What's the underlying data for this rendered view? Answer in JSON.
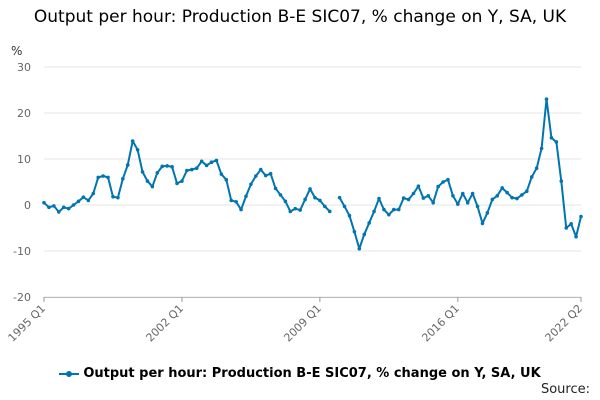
{
  "chart_data": {
    "type": "line",
    "title": "Output per hour: Production B-E SIC07, % change on Y, SA, UK",
    "ylabel": "%",
    "xlabel": "",
    "ylim": [
      -20,
      30
    ],
    "yticks": [
      -20,
      -10,
      0,
      10,
      20,
      30
    ],
    "xticks": [
      "1995 Q1",
      "2002 Q1",
      "2009 Q1",
      "2016 Q1",
      "2022 Q2"
    ],
    "grid": true,
    "legend_position": "bottom",
    "series": [
      {
        "name": "Output per hour: Production B-E SIC07, % change on Y, SA, UK",
        "color": "#0075b0",
        "x": [
          "1995 Q1",
          "1995 Q2",
          "1995 Q3",
          "1995 Q4",
          "1996 Q1",
          "1996 Q2",
          "1996 Q3",
          "1996 Q4",
          "1997 Q1",
          "1997 Q2",
          "1997 Q3",
          "1997 Q4",
          "1998 Q1",
          "1998 Q2",
          "1998 Q3",
          "1998 Q4",
          "1999 Q1",
          "1999 Q2",
          "1999 Q3",
          "1999 Q4",
          "2000 Q1",
          "2000 Q2",
          "2000 Q3",
          "2000 Q4",
          "2001 Q1",
          "2001 Q2",
          "2001 Q3",
          "2001 Q4",
          "2002 Q1",
          "2002 Q2",
          "2002 Q3",
          "2002 Q4",
          "2003 Q1",
          "2003 Q2",
          "2003 Q3",
          "2003 Q4",
          "2004 Q1",
          "2004 Q2",
          "2004 Q3",
          "2004 Q4",
          "2005 Q1",
          "2005 Q2",
          "2005 Q3",
          "2005 Q4",
          "2006 Q1",
          "2006 Q2",
          "2006 Q3",
          "2006 Q4",
          "2007 Q1",
          "2007 Q2",
          "2007 Q3",
          "2007 Q4",
          "2008 Q1",
          "2008 Q2",
          "2008 Q3",
          "2008 Q4",
          "2009 Q1",
          "2009 Q2",
          "2009 Q3",
          "2009 Q4",
          "2010 Q1",
          "2010 Q2",
          "2010 Q3",
          "2010 Q4",
          "2011 Q1",
          "2011 Q2",
          "2011 Q3",
          "2011 Q4",
          "2012 Q1",
          "2012 Q2",
          "2012 Q3",
          "2012 Q4",
          "2013 Q1",
          "2013 Q2",
          "2013 Q3",
          "2013 Q4",
          "2014 Q1",
          "2014 Q2",
          "2014 Q3",
          "2014 Q4",
          "2015 Q1",
          "2015 Q2",
          "2015 Q3",
          "2015 Q4",
          "2016 Q1",
          "2016 Q2",
          "2016 Q3",
          "2016 Q4",
          "2017 Q1",
          "2017 Q2",
          "2017 Q3",
          "2017 Q4",
          "2018 Q1",
          "2018 Q2",
          "2018 Q3",
          "2018 Q4",
          "2019 Q1",
          "2019 Q2",
          "2019 Q3",
          "2019 Q4",
          "2020 Q1",
          "2020 Q2",
          "2020 Q3",
          "2020 Q4",
          "2021 Q1",
          "2021 Q2",
          "2021 Q3",
          "2021 Q4",
          "2022 Q1",
          "2022 Q2"
        ],
        "values": [
          0.5,
          -0.5,
          -0.2,
          -1.5,
          -0.5,
          -0.8,
          0,
          0.8,
          1.7,
          1.0,
          2.5,
          6.0,
          6.3,
          6.0,
          1.8,
          1.6,
          5.7,
          8.7,
          13.9,
          12.0,
          7.2,
          5.2,
          4.0,
          7.0,
          8.4,
          8.5,
          8.3,
          4.7,
          5.2,
          7.5,
          7.7,
          8.0,
          9.5,
          8.6,
          9.3,
          9.7,
          6.7,
          5.5,
          1.0,
          0.7,
          -1.0,
          1.9,
          4.5,
          6.3,
          7.7,
          6.4,
          6.8,
          3.6,
          2.2,
          0.8,
          -1.4,
          -0.8,
          -1.1,
          1.2,
          3.5,
          1.6,
          1.0,
          -0.3,
          -1.4,
          null,
          1.6,
          -0.3,
          -2.3,
          -5.8,
          -9.5,
          -6.4,
          -3.9,
          -1.4,
          1.4,
          -1.0,
          -2.1,
          -1.0,
          -1.0,
          1.5,
          1.2,
          2.5,
          4.1,
          1.5,
          2.0,
          0.5,
          4.0,
          5.0,
          5.5,
          2.0,
          0.2,
          2.5,
          0.5,
          2.5,
          -0.3,
          -4.0,
          -1.7,
          1.2,
          2.0,
          3.7,
          2.7,
          1.6,
          1.4,
          2.2,
          3.0,
          6.1,
          8.0,
          12.3,
          23.0,
          14.6,
          13.7,
          5.2,
          -5.0,
          -4.1,
          -6.9,
          -2.5
        ]
      }
    ]
  },
  "source_label": "Source:"
}
